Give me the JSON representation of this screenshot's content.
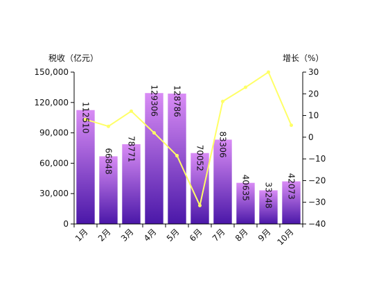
{
  "chart_data": {
    "type": "bar+line",
    "categories": [
      "1月",
      "2月",
      "3月",
      "4月",
      "5月",
      "6月",
      "7月",
      "8月",
      "9月",
      "10月"
    ],
    "series": [
      {
        "type": "bar",
        "axis": "left",
        "values": [
          112510,
          66848,
          78771,
          129306,
          128786,
          70052,
          83306,
          40635,
          33248,
          42073
        ],
        "data_labels": [
          "112510",
          "66848",
          "78771",
          "129306",
          "128786",
          "70052",
          "83306",
          "40635",
          "33248",
          "42073"
        ]
      },
      {
        "type": "line",
        "axis": "right",
        "values": [
          8.2,
          5.0,
          12.0,
          2.0,
          -8.5,
          -31.5,
          16.5,
          23.0,
          30.0,
          5.5
        ]
      }
    ],
    "left_axis": {
      "title": "税收（亿元）",
      "ylim": [
        0,
        150000
      ],
      "ticks": [
        0,
        30000,
        60000,
        90000,
        120000,
        150000
      ],
      "tick_labels": [
        "0",
        "30,000",
        "60,000",
        "90,000",
        "120,000",
        "150,000"
      ]
    },
    "right_axis": {
      "title": "增长（%）",
      "ylim": [
        -40,
        30
      ],
      "ticks": [
        -40,
        -30,
        -20,
        -10,
        0,
        10,
        20,
        30
      ],
      "tick_labels": [
        "−40",
        "−30",
        "−20",
        "−10",
        "0",
        "10",
        "20",
        "30"
      ]
    },
    "grid": false,
    "legend": "none",
    "colors": {
      "bar_top": "#d98cf5",
      "bar_bottom": "#4a17a8",
      "line": "#ffff66",
      "axis": "#000000"
    }
  }
}
